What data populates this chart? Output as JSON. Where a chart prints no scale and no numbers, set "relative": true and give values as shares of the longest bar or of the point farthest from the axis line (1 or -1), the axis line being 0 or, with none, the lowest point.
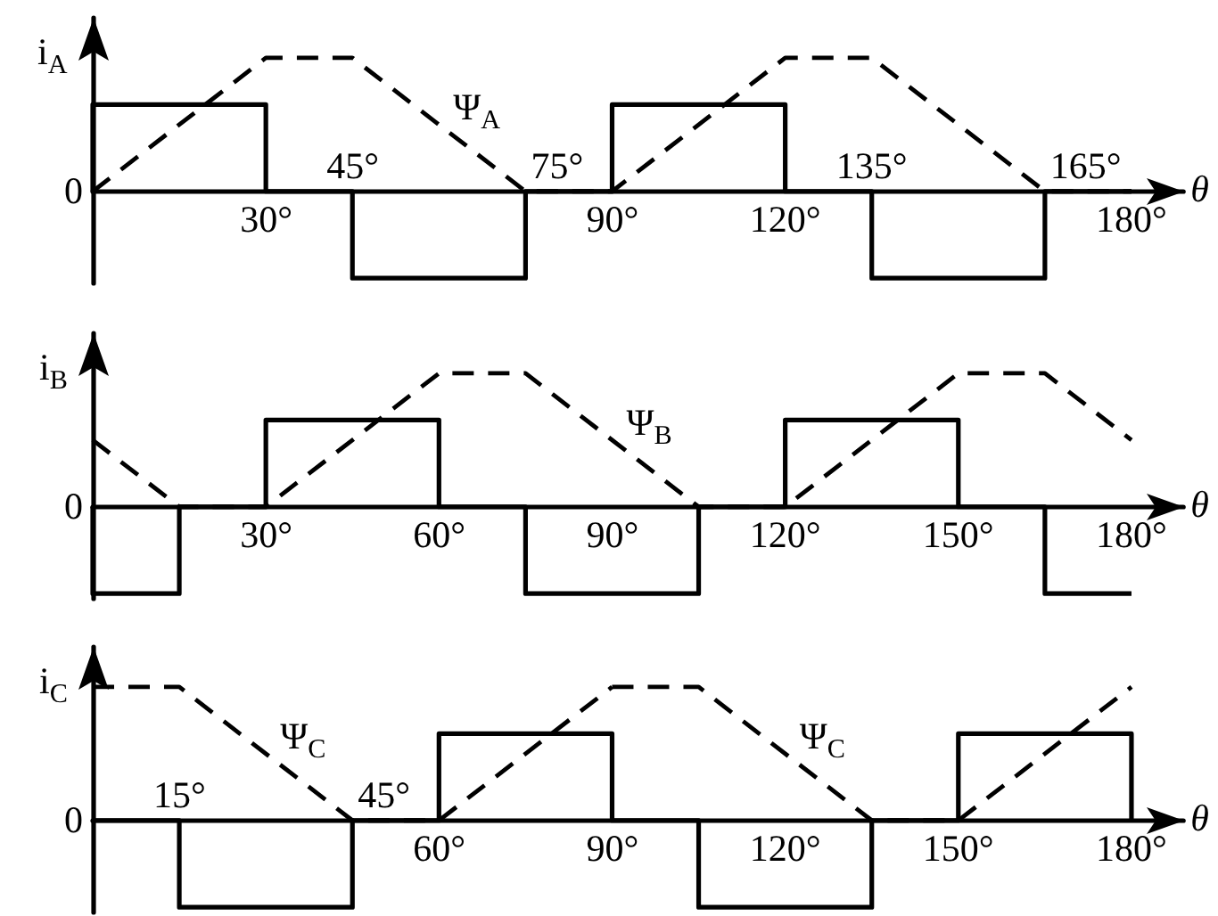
{
  "chart_data": [
    {
      "type": "line",
      "ylabel": "i$_{A}$",
      "xlabel": "θ",
      "relative": true,
      "xlim": [
        0,
        189
      ],
      "xticks": [
        {
          "value": 30,
          "label": "30°"
        },
        {
          "value": 90,
          "label": "90°"
        },
        {
          "value": 120,
          "label": "120°"
        },
        {
          "value": 180,
          "label": "180°"
        }
      ],
      "annotations": [
        {
          "text": "0",
          "x": 0,
          "y": 0
        },
        {
          "text": "45°",
          "x": 45,
          "y": 0
        },
        {
          "text": "75°",
          "x": 75,
          "y": 0
        },
        {
          "text": "135°",
          "x": 135,
          "y": 0
        },
        {
          "text": "165°",
          "x": 165,
          "y": 0
        }
      ],
      "series": [
        {
          "color": "#000000",
          "line_style": "solid",
          "x": [
            0,
            0,
            30,
            30,
            45,
            45,
            75,
            75,
            90,
            90,
            120,
            120,
            135,
            135,
            165,
            165,
            180
          ],
          "values": [
            0,
            0.65,
            0.65,
            0,
            0,
            -0.65,
            -0.65,
            0,
            0,
            0.65,
            0.65,
            0,
            0,
            -0.65,
            -0.65,
            0,
            0
          ]
        },
        {
          "name": "Ψ$_{A}$",
          "color": "#000000",
          "line_style": "dashed",
          "x": [
            0,
            30,
            45,
            75,
            90,
            120,
            135,
            165,
            180
          ],
          "values": [
            0,
            1,
            1,
            0,
            0,
            1,
            1,
            0,
            0
          ]
        }
      ]
    },
    {
      "type": "line",
      "ylabel": "i$_{B}$",
      "xlabel": "θ",
      "relative": true,
      "xlim": [
        0,
        189
      ],
      "xticks": [
        {
          "value": 30,
          "label": "30°"
        },
        {
          "value": 60,
          "label": "60°"
        },
        {
          "value": 90,
          "label": "90°"
        },
        {
          "value": 120,
          "label": "120°"
        },
        {
          "value": 150,
          "label": "150°"
        },
        {
          "value": 180,
          "label": "180°"
        }
      ],
      "annotations": [
        {
          "text": "0",
          "x": 0,
          "y": 0
        }
      ],
      "series": [
        {
          "color": "#000000",
          "line_style": "solid",
          "x": [
            0,
            0,
            15,
            15,
            30,
            30,
            60,
            60,
            75,
            75,
            105,
            105,
            120,
            120,
            150,
            150,
            165,
            165,
            180
          ],
          "values": [
            0,
            -0.65,
            -0.65,
            0,
            0,
            0.65,
            0.65,
            0,
            0,
            -0.65,
            -0.65,
            0,
            0,
            0.65,
            0.65,
            0,
            0,
            -0.65,
            -0.65
          ]
        },
        {
          "name": "Ψ$_{B}$",
          "color": "#000000",
          "line_style": "dashed",
          "x": [
            0,
            15,
            30,
            60,
            75,
            105,
            120,
            150,
            165,
            180
          ],
          "values": [
            0.5,
            0,
            0,
            1,
            1,
            0,
            0,
            1,
            1,
            0.5
          ]
        }
      ]
    },
    {
      "type": "line",
      "ylabel": "i$_{C}$",
      "xlabel": "θ",
      "relative": true,
      "xlim": [
        0,
        189
      ],
      "xticks": [
        {
          "value": 60,
          "label": "60°"
        },
        {
          "value": 90,
          "label": "90°"
        },
        {
          "value": 120,
          "label": "120°"
        },
        {
          "value": 150,
          "label": "150°"
        },
        {
          "value": 180,
          "label": "180°"
        }
      ],
      "annotations": [
        {
          "text": "0",
          "x": 0,
          "y": 0
        },
        {
          "text": "15°",
          "x": 15,
          "y": 0
        },
        {
          "text": "45°",
          "x": 45,
          "y": 0
        }
      ],
      "series": [
        {
          "color": "#000000",
          "line_style": "solid",
          "x": [
            0,
            15,
            15,
            45,
            45,
            60,
            60,
            90,
            90,
            105,
            105,
            135,
            135,
            150,
            150,
            180,
            180
          ],
          "values": [
            0,
            0,
            -0.65,
            -0.65,
            0,
            0,
            0.65,
            0.65,
            0,
            0,
            -0.65,
            -0.65,
            0,
            0,
            0.65,
            0.65,
            0
          ]
        },
        {
          "name": "Ψ$_{C}$",
          "color": "#000000",
          "line_style": "dashed",
          "x": [
            0,
            15,
            45,
            60,
            90
          ],
          "values": [
            1,
            1,
            0,
            0,
            1
          ]
        },
        {
          "name": "Ψ$_{C}$",
          "color": "#000000",
          "line_style": "dashed",
          "x": [
            90,
            105,
            135,
            150,
            180
          ],
          "values": [
            1,
            1,
            0,
            0,
            1
          ]
        }
      ]
    }
  ]
}
